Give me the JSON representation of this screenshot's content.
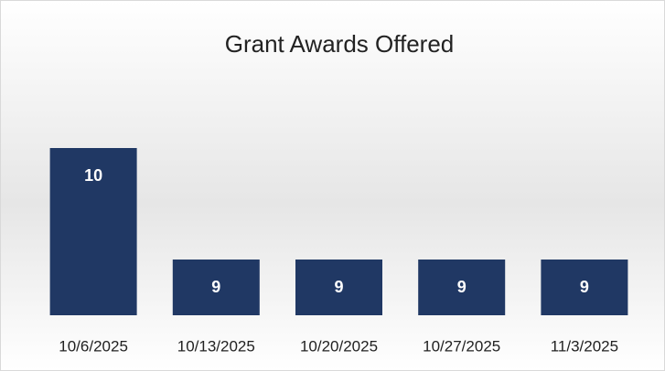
{
  "chart_data": {
    "type": "bar",
    "title": "Grant Awards Offered",
    "categories": [
      "10/6/2025",
      "10/13/2025",
      "10/20/2025",
      "10/27/2025",
      "11/3/2025"
    ],
    "values": [
      10,
      9,
      9,
      9,
      9
    ],
    "color": "#203864",
    "ylim": [
      8.5,
      10.25
    ],
    "grid": false
  }
}
